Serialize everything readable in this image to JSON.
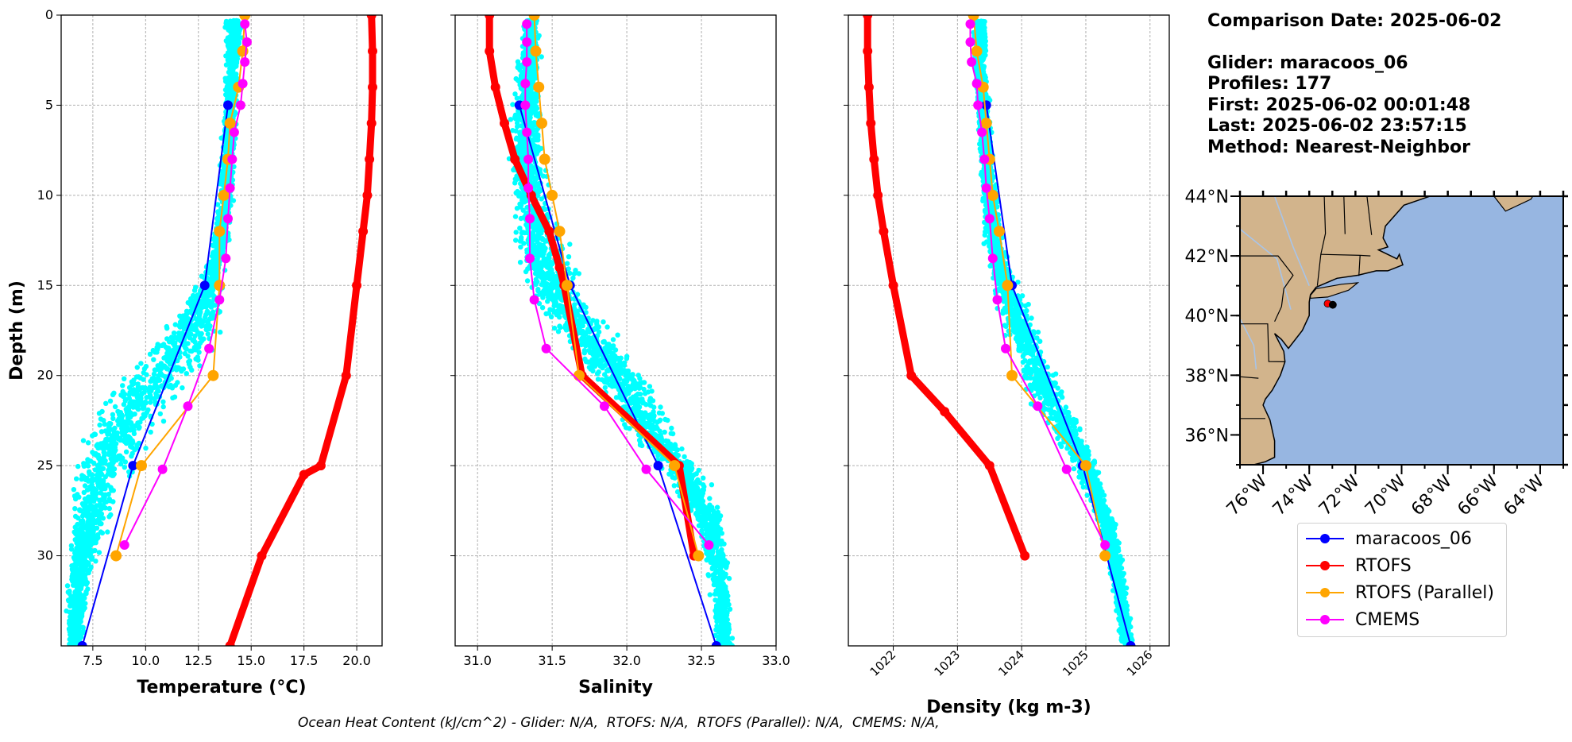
{
  "info": {
    "comparison": "Comparison Date: 2025-06-02",
    "glider": "Glider: maracoos_06",
    "profiles": "Profiles: 177",
    "first": "First: 2025-06-02 00:01:48",
    "last": "Last: 2025-06-02 23:57:15",
    "method": "Method: Nearest-Neighbor"
  },
  "footnote": "Ocean Heat Content (kJ/cm^2) - Glider: N/A,  RTOFS: N/A,  RTOFS (Parallel): N/A,  CMEMS: N/A,",
  "colors": {
    "glider": "#0000ff",
    "rtofs": "#ff0000",
    "parallel": "#ffa500",
    "cmems": "#ff00ff",
    "scatter": "#00ffff",
    "land": "#d2b48c",
    "ocean": "#97b6e1"
  },
  "legend": [
    {
      "label": "maracoos_06",
      "color": "#0000ff"
    },
    {
      "label": "RTOFS",
      "color": "#ff0000"
    },
    {
      "label": "RTOFS (Parallel)",
      "color": "#ffa500"
    },
    {
      "label": "CMEMS",
      "color": "#ff00ff"
    }
  ],
  "chart_data": [
    {
      "type": "line",
      "xlabel": "Temperature (°C)",
      "ylabel": "Depth (m)",
      "xlim": [
        6.0,
        21.2
      ],
      "ylim": [
        35,
        0
      ],
      "xticks": [
        "7.5",
        "10.0",
        "12.5",
        "15.0",
        "17.5",
        "20.0"
      ],
      "yticks": [
        "0",
        "5",
        "10",
        "15",
        "20",
        "25",
        "30"
      ],
      "grid": true,
      "series": [
        {
          "name": "maracoos_06",
          "x": [
            13.9,
            12.8,
            9.4,
            7.0
          ],
          "y": [
            5,
            15,
            25,
            35
          ]
        },
        {
          "name": "RTOFS",
          "x": [
            20.7,
            20.75,
            20.75,
            20.7,
            20.6,
            20.5,
            20.3,
            20.0,
            19.5,
            18.3,
            17.5,
            15.5,
            14.0
          ],
          "y": [
            0,
            2,
            4,
            6,
            8,
            10,
            12,
            15,
            20,
            25,
            25.5,
            30,
            35
          ]
        },
        {
          "name": "RTOFS (Parallel)",
          "x": [
            14.7,
            14.6,
            14.4,
            14.0,
            13.9,
            13.7,
            13.5,
            13.5,
            13.2,
            9.8,
            8.6
          ],
          "y": [
            0,
            2,
            4,
            6,
            8,
            10,
            12,
            15,
            20,
            25,
            30
          ]
        },
        {
          "name": "CMEMS",
          "x": [
            14.7,
            14.8,
            14.7,
            14.6,
            14.5,
            14.2,
            14.1,
            14.0,
            13.9,
            13.8,
            13.5,
            13.0,
            12.0,
            10.8,
            9.0
          ],
          "y": [
            0.5,
            1.5,
            2.6,
            3.8,
            5,
            6.5,
            8,
            9.6,
            11.3,
            13.5,
            15.8,
            18.5,
            21.7,
            25.2,
            29.4
          ]
        }
      ]
    },
    {
      "type": "line",
      "xlabel": "Salinity",
      "xlim": [
        30.85,
        33.0
      ],
      "ylim": [
        35,
        0
      ],
      "xticks": [
        "31.0",
        "31.5",
        "32.0",
        "32.5",
        "33.0"
      ],
      "grid": true,
      "series": [
        {
          "name": "maracoos_06",
          "x": [
            31.28,
            31.62,
            32.21,
            32.6
          ],
          "y": [
            5,
            15,
            25,
            35
          ]
        },
        {
          "name": "RTOFS",
          "x": [
            31.08,
            31.08,
            31.12,
            31.18,
            31.25,
            31.36,
            31.48,
            31.55,
            31.58,
            31.7,
            32.35,
            32.45
          ],
          "y": [
            0,
            2,
            4,
            6,
            8,
            10,
            12,
            14,
            15,
            20,
            25,
            30
          ]
        },
        {
          "name": "RTOFS (Parallel)",
          "x": [
            31.38,
            31.39,
            31.41,
            31.43,
            31.45,
            31.5,
            31.55,
            31.6,
            31.68,
            32.32,
            32.48
          ],
          "y": [
            0,
            2,
            4,
            6,
            8,
            10,
            12,
            15,
            20,
            25,
            30
          ]
        },
        {
          "name": "CMEMS",
          "x": [
            31.33,
            31.33,
            31.33,
            31.32,
            31.32,
            31.33,
            31.34,
            31.34,
            31.35,
            31.35,
            31.38,
            31.46,
            31.85,
            32.13,
            32.55
          ],
          "y": [
            0.5,
            1.5,
            2.6,
            3.8,
            5,
            6.5,
            8,
            9.6,
            11.3,
            13.5,
            15.8,
            18.5,
            21.7,
            25.2,
            29.4
          ]
        }
      ]
    },
    {
      "type": "line",
      "xlabel": "Density (kg m-3)",
      "xlim": [
        1021.3,
        1026.3
      ],
      "ylim": [
        35,
        0
      ],
      "xticks": [
        "1022",
        "1023",
        "1024",
        "1025",
        "1026"
      ],
      "grid": true,
      "series": [
        {
          "name": "maracoos_06",
          "x": [
            1023.45,
            1023.85,
            1024.95,
            1025.7
          ],
          "y": [
            5,
            15,
            25,
            35
          ]
        },
        {
          "name": "RTOFS",
          "x": [
            1021.6,
            1021.6,
            1021.62,
            1021.65,
            1021.7,
            1021.76,
            1021.85,
            1022.0,
            1022.28,
            1022.8,
            1023.5,
            1024.05
          ],
          "y": [
            0,
            2,
            4,
            6,
            8,
            10,
            12,
            15,
            20,
            22,
            25,
            30
          ]
        },
        {
          "name": "RTOFS (Parallel)",
          "x": [
            1023.25,
            1023.3,
            1023.4,
            1023.45,
            1023.5,
            1023.55,
            1023.65,
            1023.78,
            1023.85,
            1025.0,
            1025.3
          ],
          "y": [
            0,
            2,
            4,
            6,
            8,
            10,
            12,
            15,
            20,
            25,
            30
          ]
        },
        {
          "name": "CMEMS",
          "x": [
            1023.2,
            1023.2,
            1023.22,
            1023.3,
            1023.32,
            1023.38,
            1023.42,
            1023.45,
            1023.5,
            1023.55,
            1023.62,
            1023.75,
            1024.25,
            1024.7,
            1025.3
          ],
          "y": [
            0.5,
            1.5,
            2.6,
            3.8,
            5,
            6.5,
            8,
            9.6,
            11.3,
            13.5,
            15.8,
            18.5,
            21.7,
            25.2,
            29.4
          ]
        }
      ]
    }
  ],
  "map": {
    "lon": [
      -77.0,
      -63.0
    ],
    "lat": [
      35.0,
      44.0
    ],
    "lon_ticks": [
      "76°W",
      "74°W",
      "72°W",
      "70°W",
      "68°W",
      "66°W",
      "64°W"
    ],
    "lat_ticks": [
      "36°N",
      "38°N",
      "40°N",
      "42°N",
      "44°N"
    ],
    "glider_positions": [
      [
        -73.2,
        40.4
      ],
      [
        -72.98,
        40.36
      ]
    ]
  }
}
